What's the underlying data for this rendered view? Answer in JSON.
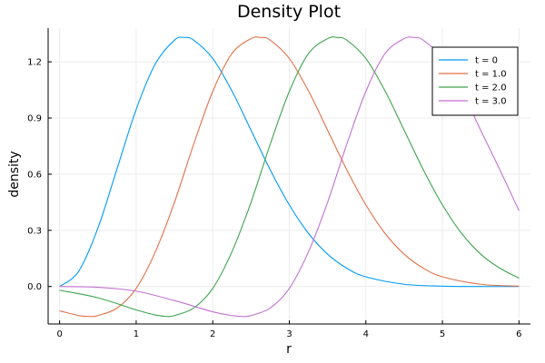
{
  "chart_data": {
    "type": "line",
    "title": "Density Plot",
    "xlabel": "r",
    "ylabel": "density",
    "xlim": [
      -0.15,
      6.15
    ],
    "ylim": [
      -0.2,
      1.38
    ],
    "xticks": [
      0,
      1,
      2,
      3,
      4,
      5,
      6
    ],
    "yticks": [
      0.0,
      0.3,
      0.6,
      0.9,
      1.2
    ],
    "ytick_labels": [
      "0.0",
      "0.3",
      "0.6",
      "0.9",
      "1.2"
    ],
    "grid": true,
    "legend_position": "top-right",
    "series": [
      {
        "name": "t = 0",
        "color": "#009af9",
        "x": [
          0,
          0.25,
          0.5,
          0.75,
          1.0,
          1.25,
          1.5,
          1.625,
          1.75,
          2.0,
          2.25,
          2.5,
          2.75,
          3.0,
          3.25,
          3.5,
          3.75,
          4.0,
          4.5,
          5.0,
          5.5,
          6.0
        ],
        "y": [
          0.0,
          0.082,
          0.312,
          0.629,
          0.946,
          1.189,
          1.316,
          1.33,
          1.316,
          1.218,
          1.045,
          0.835,
          0.624,
          0.436,
          0.284,
          0.173,
          0.098,
          0.052,
          0.012,
          0.002,
          0.0,
          0.0
        ]
      },
      {
        "name": "t = 1.0",
        "color": "#e26f46",
        "x": [
          0,
          0.25,
          0.4,
          0.5,
          0.75,
          1.0,
          1.25,
          1.5,
          1.75,
          2.0,
          2.25,
          2.5,
          2.625,
          2.75,
          3.0,
          3.25,
          3.5,
          3.75,
          4.0,
          4.25,
          4.5,
          4.75,
          5.0,
          5.5,
          6.0
        ],
        "y": [
          -0.13,
          -0.155,
          -0.16,
          -0.155,
          -0.115,
          -0.01,
          0.185,
          0.45,
          0.759,
          1.042,
          1.244,
          1.324,
          1.33,
          1.316,
          1.218,
          1.045,
          0.835,
          0.624,
          0.436,
          0.284,
          0.173,
          0.098,
          0.052,
          0.012,
          0.002
        ]
      },
      {
        "name": "t = 2.0",
        "color": "#3da44d",
        "x": [
          0,
          0.5,
          1.0,
          1.25,
          1.4,
          1.5,
          1.75,
          2.0,
          2.25,
          2.5,
          2.75,
          3.0,
          3.25,
          3.5,
          3.625,
          3.75,
          4.0,
          4.25,
          4.5,
          4.75,
          5.0,
          5.25,
          5.5,
          5.75,
          6.0
        ],
        "y": [
          -0.02,
          -0.06,
          -0.125,
          -0.152,
          -0.16,
          -0.155,
          -0.115,
          -0.01,
          0.185,
          0.45,
          0.759,
          1.042,
          1.244,
          1.324,
          1.33,
          1.316,
          1.218,
          1.045,
          0.835,
          0.624,
          0.436,
          0.284,
          0.173,
          0.098,
          0.045
        ]
      },
      {
        "name": "t = 3.0",
        "color": "#c271d2",
        "x": [
          0,
          0.5,
          1.0,
          1.5,
          2.0,
          2.25,
          2.4,
          2.5,
          2.75,
          3.0,
          3.25,
          3.5,
          3.75,
          4.0,
          4.25,
          4.5,
          4.625,
          4.75,
          5.0,
          5.25,
          5.5,
          5.75,
          6.0
        ],
        "y": [
          0.0,
          -0.004,
          -0.025,
          -0.075,
          -0.135,
          -0.155,
          -0.16,
          -0.155,
          -0.115,
          -0.01,
          0.185,
          0.45,
          0.759,
          1.042,
          1.244,
          1.324,
          1.33,
          1.316,
          1.218,
          1.045,
          0.835,
          0.624,
          0.405
        ]
      }
    ]
  }
}
